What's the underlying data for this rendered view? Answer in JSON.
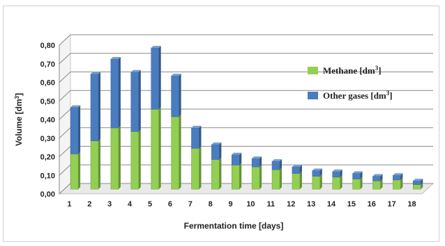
{
  "chart_data": {
    "type": "bar",
    "stacked": true,
    "three_d": true,
    "title": "",
    "xlabel": "Fermentation time [days]",
    "ylabel": "Volume [dm3]",
    "ylabel_base": "Volume [dm",
    "ylabel_sup": "3",
    "ylabel_end": "]",
    "ylim": [
      0,
      0.8
    ],
    "ystep": 0.1,
    "y_ticks": [
      "0,00",
      "0,10",
      "0,20",
      "0,30",
      "0,40",
      "0,50",
      "0,60",
      "0,70",
      "0,80"
    ],
    "grid": true,
    "legend_position": "right",
    "categories": [
      "1",
      "2",
      "3",
      "4",
      "5",
      "6",
      "7",
      "8",
      "9",
      "10",
      "11",
      "12",
      "13",
      "14",
      "15",
      "16",
      "17",
      "18"
    ],
    "series": [
      {
        "name": "Methane [dm3]",
        "legend_base": "Methane [dm",
        "legend_sup": "3",
        "legend_end": "]",
        "color": "#92cf52",
        "values": [
          0.19,
          0.26,
          0.33,
          0.31,
          0.43,
          0.39,
          0.22,
          0.16,
          0.13,
          0.12,
          0.105,
          0.085,
          0.07,
          0.065,
          0.055,
          0.045,
          0.05,
          0.025
        ]
      },
      {
        "name": "Other gases [dm3]",
        "legend_base": "Other gases [dm",
        "legend_sup": "3",
        "legend_end": "]",
        "color": "#4a7dc0",
        "values": [
          0.25,
          0.36,
          0.37,
          0.32,
          0.33,
          0.22,
          0.11,
          0.08,
          0.055,
          0.045,
          0.045,
          0.035,
          0.03,
          0.03,
          0.03,
          0.025,
          0.025,
          0.02
        ]
      }
    ]
  }
}
